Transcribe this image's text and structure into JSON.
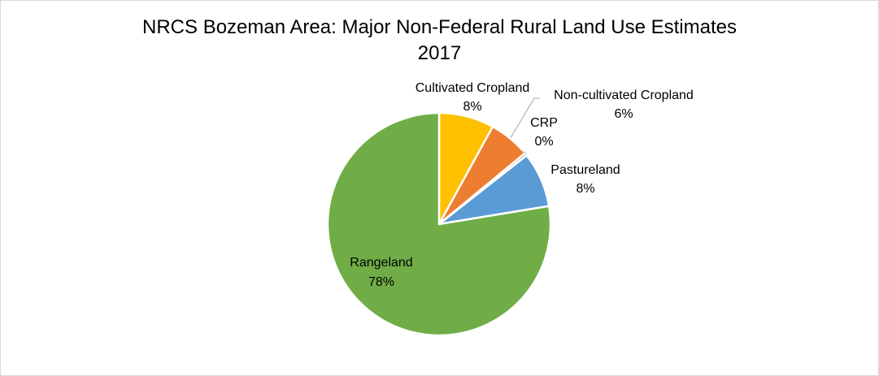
{
  "chart_data": {
    "type": "pie",
    "title_line1": "NRCS Bozeman Area: Major Non-Federal Rural Land Use Estimates",
    "title_line2": "2017",
    "slices": [
      {
        "label": "Cultivated Cropland",
        "value": 8,
        "percent_label": "8%",
        "color": "#ffc000"
      },
      {
        "label": "Non-cultivated Cropland",
        "value": 6,
        "percent_label": "6%",
        "color": "#ed7d31"
      },
      {
        "label": "CRP",
        "value": 0.4,
        "percent_label": "0%",
        "color": "#a5a5a5"
      },
      {
        "label": "Pastureland",
        "value": 8,
        "percent_label": "8%",
        "color": "#5b9bd5"
      },
      {
        "label": "Rangeland",
        "value": 77.6,
        "percent_label": "78%",
        "color": "#70ad47"
      }
    ],
    "start_angle": "12 o'clock, clockwise",
    "legend": "none (data labels on chart)"
  }
}
